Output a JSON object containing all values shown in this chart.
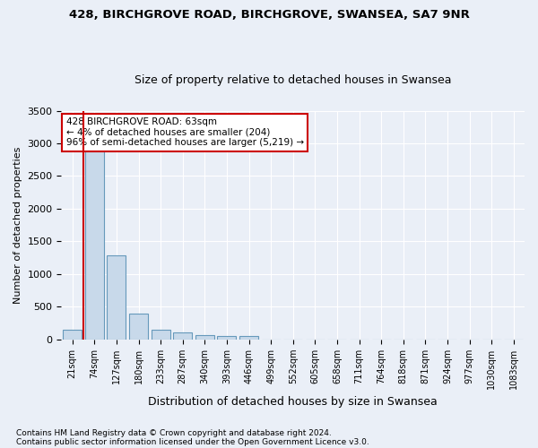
{
  "title1": "428, BIRCHGROVE ROAD, BIRCHGROVE, SWANSEA, SA7 9NR",
  "title2": "Size of property relative to detached houses in Swansea",
  "xlabel": "Distribution of detached houses by size in Swansea",
  "ylabel": "Number of detached properties",
  "footnote1": "Contains HM Land Registry data © Crown copyright and database right 2024.",
  "footnote2": "Contains public sector information licensed under the Open Government Licence v3.0.",
  "annotation_title": "428 BIRCHGROVE ROAD: 63sqm",
  "annotation_line2": "← 4% of detached houses are smaller (204)",
  "annotation_line3": "96% of semi-detached houses are larger (5,219) →",
  "bar_labels": [
    "21sqm",
    "74sqm",
    "127sqm",
    "180sqm",
    "233sqm",
    "287sqm",
    "340sqm",
    "393sqm",
    "446sqm",
    "499sqm",
    "552sqm",
    "605sqm",
    "658sqm",
    "711sqm",
    "764sqm",
    "818sqm",
    "871sqm",
    "924sqm",
    "977sqm",
    "1030sqm",
    "1083sqm"
  ],
  "bar_values": [
    150,
    3230,
    1280,
    400,
    150,
    100,
    60,
    55,
    50,
    0,
    0,
    0,
    0,
    0,
    0,
    0,
    0,
    0,
    0,
    0,
    0
  ],
  "bar_color": "#c8d9ea",
  "bar_edge_color": "#6699bb",
  "highlight_color": "#cc0000",
  "red_line_x": 0.5,
  "ylim": [
    0,
    3500
  ],
  "yticks": [
    0,
    500,
    1000,
    1500,
    2000,
    2500,
    3000,
    3500
  ],
  "bg_color": "#eaeff7",
  "plot_bg_color": "#eaeff7",
  "annotation_box_color": "#ffffff",
  "annotation_border_color": "#cc0000",
  "title1_fontsize": 9.5,
  "title2_fontsize": 9.0,
  "ylabel_fontsize": 8,
  "xlabel_fontsize": 9,
  "tick_fontsize": 7,
  "footnote_fontsize": 6.5
}
